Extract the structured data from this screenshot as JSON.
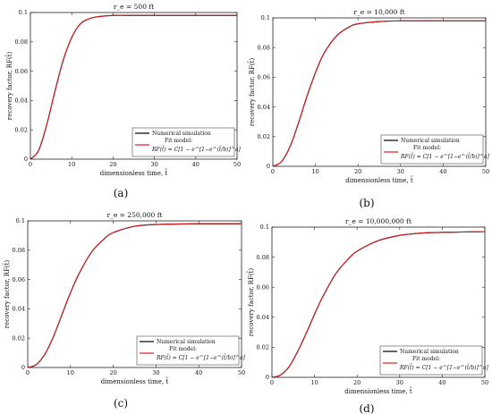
{
  "chart_data": [
    {
      "type": "line",
      "panel_label": "(a)",
      "title": "r_e = 500 ft",
      "xlabel": "dimensionless time, t̃",
      "ylabel": "recovery factor, RF(t̃)",
      "xlim": [
        0,
        50
      ],
      "ylim": [
        0,
        0.1
      ],
      "xticks": [
        "0",
        "10",
        "20",
        "30",
        "40",
        "50"
      ],
      "yticks": [
        "0",
        "0.02",
        "0.04",
        "0.06",
        "0.08",
        "0.1"
      ],
      "grid": false,
      "legend_position": "bottom-right",
      "legend": [
        "Numerical simulation",
        "Fit model:",
        "RF(t̃) = C[1 − e^[1−e^(t̃/b)]^a]"
      ],
      "series": [
        {
          "name": "Numerical simulation",
          "color": "#000000",
          "x": [
            0,
            2,
            4,
            6,
            8,
            10,
            12,
            14,
            16,
            20,
            25,
            30,
            40,
            50
          ],
          "y": [
            0,
            0.006,
            0.024,
            0.047,
            0.068,
            0.083,
            0.092,
            0.0955,
            0.097,
            0.098,
            0.098,
            0.098,
            0.098,
            0.098
          ]
        },
        {
          "name": "Fit model",
          "color": "#e41a1c",
          "x": [
            0,
            2,
            4,
            6,
            8,
            10,
            12,
            14,
            16,
            20,
            25,
            30,
            40,
            50
          ],
          "y": [
            0,
            0.006,
            0.024,
            0.047,
            0.068,
            0.083,
            0.092,
            0.0955,
            0.097,
            0.098,
            0.098,
            0.098,
            0.098,
            0.098
          ]
        }
      ]
    },
    {
      "type": "line",
      "panel_label": "(b)",
      "title": "r_e = 10,000 ft",
      "xlabel": "dimensionless time, t̃",
      "ylabel": "recovery factor, RF(t̃)",
      "xlim": [
        0,
        50
      ],
      "ylim": [
        0,
        0.1
      ],
      "xticks": [
        "0",
        "10",
        "20",
        "30",
        "40",
        "50"
      ],
      "yticks": [
        "0",
        "0.02",
        "0.04",
        "0.06",
        "0.08",
        "0.1"
      ],
      "grid": false,
      "legend_position": "bottom-right",
      "legend": [
        "Numerical simulation",
        "Fit model:",
        "RF(t̃) = C[1 − e^[1−e^(t̃/b)]^a]"
      ],
      "series": [
        {
          "name": "Numerical simulation",
          "color": "#000000",
          "x": [
            0,
            2,
            4,
            6,
            8,
            10,
            12,
            15,
            18,
            20,
            25,
            30,
            40,
            50
          ],
          "y": [
            0,
            0.003,
            0.013,
            0.029,
            0.047,
            0.063,
            0.076,
            0.088,
            0.094,
            0.096,
            0.0975,
            0.098,
            0.098,
            0.098
          ]
        },
        {
          "name": "Fit model",
          "color": "#e41a1c",
          "x": [
            0,
            2,
            4,
            6,
            8,
            10,
            12,
            15,
            18,
            20,
            25,
            30,
            40,
            50
          ],
          "y": [
            0,
            0.003,
            0.013,
            0.029,
            0.047,
            0.063,
            0.076,
            0.088,
            0.094,
            0.096,
            0.0975,
            0.098,
            0.098,
            0.098
          ]
        }
      ]
    },
    {
      "type": "line",
      "panel_label": "(c)",
      "title": "r_e = 250,000 ft",
      "xlabel": "dimensionless time, t̃",
      "ylabel": "recovery factor, RF(t̃)",
      "xlim": [
        0,
        50
      ],
      "ylim": [
        0,
        0.1
      ],
      "xticks": [
        "0",
        "10",
        "20",
        "30",
        "40",
        "50"
      ],
      "yticks": [
        "0",
        "0.02",
        "0.04",
        "0.06",
        "0.08",
        "0.1"
      ],
      "grid": false,
      "legend_position": "bottom-right",
      "legend": [
        "Numerical simulation",
        "Fit model:",
        "RF(t̃) = C[1 − e^[1−e^(t̃/b)]^a]"
      ],
      "series": [
        {
          "name": "Numerical simulation",
          "color": "#000000",
          "x": [
            0,
            2,
            4,
            6,
            8,
            10,
            12,
            15,
            18,
            20,
            25,
            30,
            40,
            50
          ],
          "y": [
            0,
            0.002,
            0.009,
            0.021,
            0.036,
            0.051,
            0.064,
            0.079,
            0.088,
            0.092,
            0.0963,
            0.0975,
            0.098,
            0.098
          ]
        },
        {
          "name": "Fit model",
          "color": "#e41a1c",
          "x": [
            0,
            2,
            4,
            6,
            8,
            10,
            12,
            15,
            18,
            20,
            25,
            30,
            40,
            50
          ],
          "y": [
            0,
            0.002,
            0.009,
            0.021,
            0.036,
            0.051,
            0.064,
            0.079,
            0.088,
            0.092,
            0.0963,
            0.0975,
            0.098,
            0.098
          ]
        }
      ]
    },
    {
      "type": "line",
      "panel_label": "(d)",
      "title": "r_e = 10,000,000 ft",
      "xlabel": "dimensionless time, t̃",
      "ylabel": "recovery factor, RF(t̃)",
      "xlim": [
        0,
        50
      ],
      "ylim": [
        0,
        0.1
      ],
      "xticks": [
        "0",
        "10",
        "20",
        "30",
        "40",
        "50"
      ],
      "yticks": [
        "0",
        "0.02",
        "0.04",
        "0.06",
        "0.08",
        "0.1"
      ],
      "grid": false,
      "legend_position": "bottom-right",
      "legend": [
        "Numerical simulation",
        "Fit model:",
        "RF(t̃) = C[1 − e^[1−e^(t̃/b)]^a]"
      ],
      "series": [
        {
          "name": "Numerical simulation",
          "color": "#000000",
          "x": [
            0,
            2,
            4,
            6,
            8,
            10,
            12,
            15,
            18,
            20,
            25,
            30,
            35,
            40,
            50
          ],
          "y": [
            0,
            0.0015,
            0.007,
            0.017,
            0.029,
            0.042,
            0.054,
            0.069,
            0.079,
            0.084,
            0.091,
            0.0945,
            0.096,
            0.0965,
            0.097
          ]
        },
        {
          "name": "Fit model",
          "color": "#e41a1c",
          "x": [
            0,
            2,
            4,
            6,
            8,
            10,
            12,
            15,
            18,
            20,
            25,
            30,
            35,
            40,
            50
          ],
          "y": [
            0,
            0.0015,
            0.007,
            0.017,
            0.029,
            0.042,
            0.054,
            0.069,
            0.079,
            0.084,
            0.091,
            0.0945,
            0.096,
            0.0965,
            0.097
          ]
        }
      ]
    }
  ]
}
